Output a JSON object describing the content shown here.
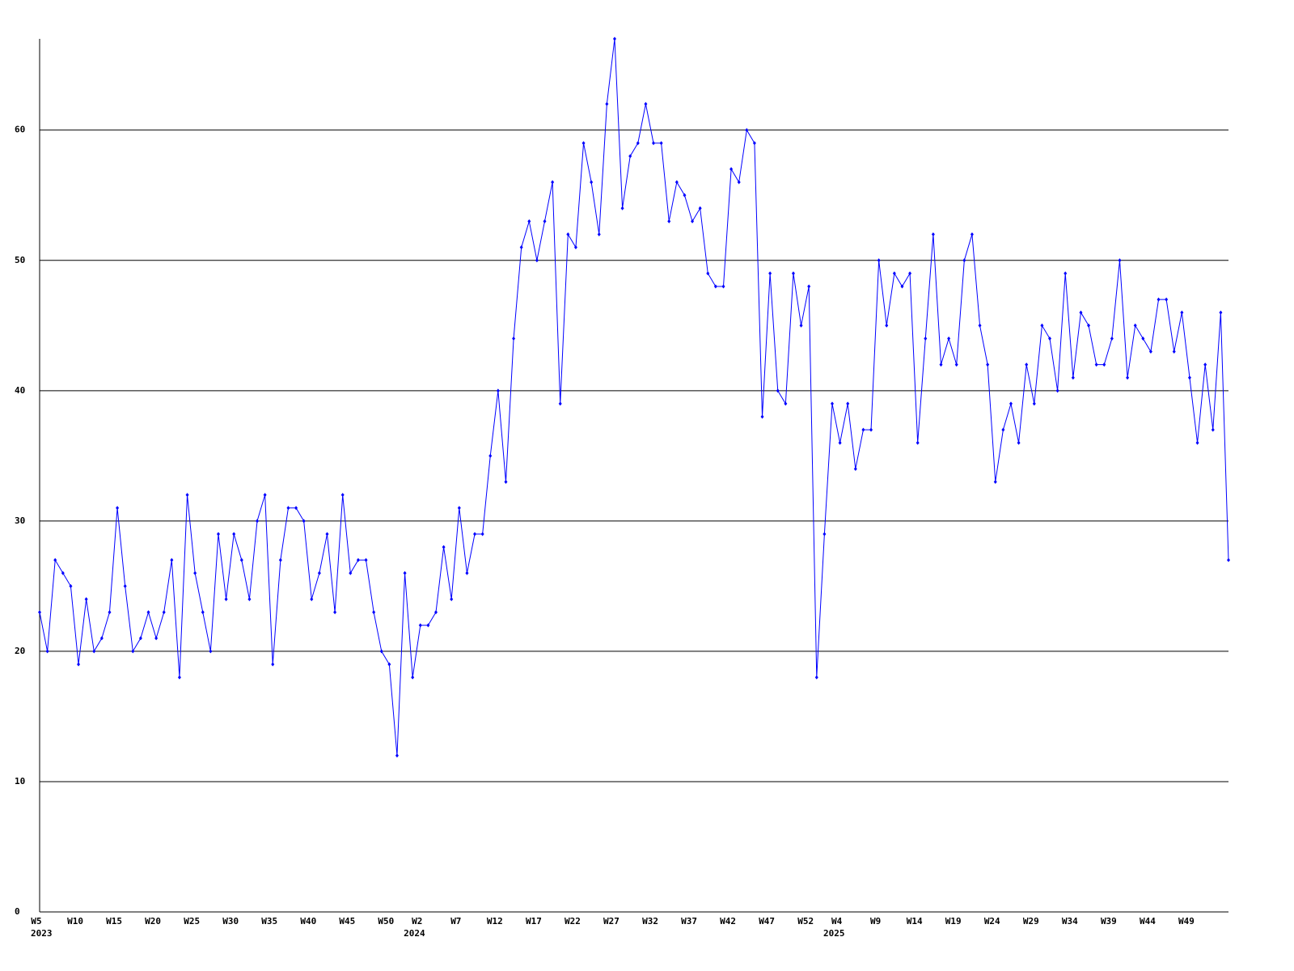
{
  "chart_data": {
    "type": "line",
    "color": "#0000ff",
    "grid": true,
    "ylim": [
      0,
      67
    ],
    "yticks": [
      0,
      10,
      20,
      30,
      40,
      50,
      60
    ],
    "categories": [
      "W5",
      null,
      null,
      null,
      null,
      "W10",
      null,
      null,
      null,
      null,
      "W15",
      null,
      null,
      null,
      null,
      "W20",
      null,
      null,
      null,
      null,
      "W25",
      null,
      null,
      null,
      null,
      "W30",
      null,
      null,
      null,
      null,
      "W35",
      null,
      null,
      null,
      null,
      "W40",
      null,
      null,
      null,
      null,
      "W45",
      null,
      null,
      null,
      null,
      "W50",
      null,
      null,
      null,
      "W2",
      null,
      null,
      null,
      null,
      "W7",
      null,
      null,
      null,
      null,
      "W12",
      null,
      null,
      null,
      null,
      "W17",
      null,
      null,
      null,
      null,
      "W22",
      null,
      null,
      null,
      null,
      "W27",
      null,
      null,
      null,
      null,
      "W32",
      null,
      null,
      null,
      null,
      "W37",
      null,
      null,
      null,
      null,
      "W42",
      null,
      null,
      null,
      null,
      "W47",
      null,
      null,
      null,
      null,
      "W52",
      null,
      null,
      null,
      "W4",
      null,
      null,
      null,
      null,
      "W9",
      null,
      null,
      null,
      null,
      "W14",
      null,
      null,
      null,
      null,
      "W19",
      null,
      null,
      null,
      null,
      "W24",
      null,
      null,
      null,
      null,
      "W29",
      null,
      null,
      null,
      null,
      "W34",
      null,
      null,
      null,
      null,
      "W39",
      null,
      null,
      null,
      null,
      "W44",
      null,
      null,
      null,
      null,
      "W49",
      null,
      null,
      null,
      null,
      null
    ],
    "category_groups": [
      "2023",
      null,
      null,
      null,
      null,
      null,
      null,
      null,
      null,
      null,
      null,
      null,
      null,
      null,
      null,
      null,
      null,
      null,
      null,
      null,
      null,
      null,
      null,
      null,
      null,
      null,
      null,
      null,
      null,
      null,
      null,
      null,
      null,
      null,
      null,
      null,
      null,
      null,
      null,
      null,
      null,
      null,
      null,
      null,
      null,
      null,
      null,
      null,
      "2024",
      null,
      null,
      null,
      null,
      null,
      null,
      null,
      null,
      null,
      null,
      null,
      null,
      null,
      null,
      null,
      null,
      null,
      null,
      null,
      null,
      null,
      null,
      null,
      null,
      null,
      null,
      null,
      null,
      null,
      null,
      null,
      null,
      null,
      null,
      null,
      null,
      null,
      null,
      null,
      null,
      null,
      null,
      null,
      null,
      null,
      null,
      null,
      null,
      null,
      null,
      null,
      null,
      null,
      "2025",
      null,
      null,
      null,
      null,
      null,
      null,
      null,
      null,
      null,
      null,
      null,
      null,
      null,
      null,
      null,
      null,
      null,
      null,
      null,
      null,
      null,
      null,
      null,
      null,
      null,
      null,
      null,
      null,
      null,
      null,
      null,
      null,
      null,
      null,
      null,
      null,
      null,
      null,
      null,
      null,
      null,
      null,
      null,
      null,
      null,
      null,
      null,
      null,
      null,
      null,
      null,
      null,
      null
    ],
    "values": [
      23,
      20,
      27,
      26,
      25,
      19,
      24,
      20,
      21,
      23,
      31,
      25,
      20,
      21,
      23,
      21,
      23,
      27,
      18,
      32,
      26,
      23,
      20,
      29,
      24,
      29,
      27,
      24,
      30,
      32,
      19,
      27,
      31,
      31,
      30,
      24,
      26,
      29,
      23,
      32,
      26,
      27,
      27,
      23,
      20,
      19,
      12,
      26,
      18,
      22,
      22,
      23,
      28,
      24,
      31,
      26,
      29,
      29,
      35,
      40,
      33,
      44,
      51,
      53,
      50,
      53,
      56,
      39,
      52,
      51,
      59,
      56,
      52,
      62,
      67,
      54,
      58,
      59,
      62,
      59,
      59,
      53,
      56,
      55,
      53,
      54,
      49,
      48,
      48,
      57,
      56,
      60,
      59,
      38,
      49,
      40,
      39,
      49,
      45,
      48,
      18,
      29,
      39,
      36,
      39,
      34,
      37,
      37,
      50,
      45,
      49,
      48,
      49,
      36,
      44,
      52,
      42,
      44,
      42,
      50,
      52,
      45,
      42,
      33,
      37,
      39,
      36,
      42,
      39,
      45,
      44,
      40,
      49,
      41,
      46,
      45,
      42,
      42,
      44,
      50,
      41,
      45,
      44,
      43,
      47,
      47,
      43,
      46,
      41,
      36,
      42,
      37,
      46,
      27
    ]
  }
}
